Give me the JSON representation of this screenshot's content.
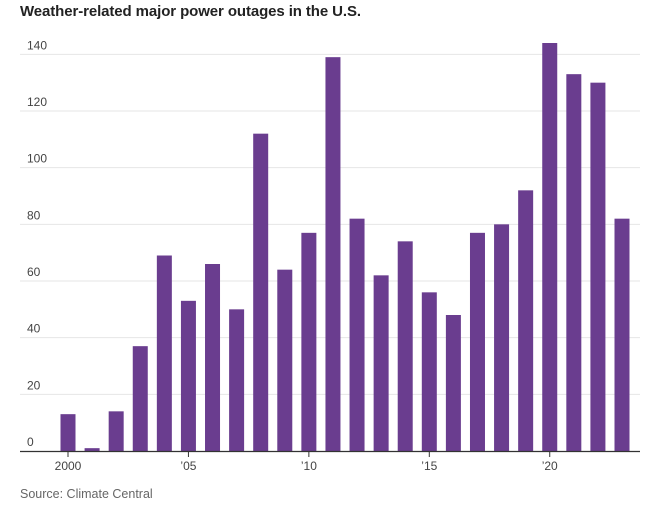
{
  "chart_data": {
    "type": "bar",
    "title": "Weather-related major power outages in the U.S.",
    "xlabel": "",
    "ylabel": "",
    "years": [
      2000,
      2001,
      2002,
      2003,
      2004,
      2005,
      2006,
      2007,
      2008,
      2009,
      2010,
      2011,
      2012,
      2013,
      2014,
      2015,
      2016,
      2017,
      2018,
      2019,
      2020,
      2021,
      2022,
      2023
    ],
    "values": [
      13,
      1,
      14,
      37,
      69,
      53,
      66,
      50,
      112,
      64,
      77,
      139,
      82,
      62,
      74,
      56,
      48,
      77,
      80,
      92,
      144,
      133,
      130,
      82
    ],
    "ylim": [
      0,
      150
    ],
    "y_ticks": [
      0,
      20,
      40,
      60,
      80,
      100,
      120,
      140
    ],
    "x_ticks": [
      {
        "year": 2000,
        "label": "2000"
      },
      {
        "year": 2005,
        "label": "’05"
      },
      {
        "year": 2010,
        "label": "’10"
      },
      {
        "year": 2015,
        "label": "’15"
      },
      {
        "year": 2020,
        "label": "’20"
      }
    ],
    "grid": true,
    "bar_color": "#6a3d8f",
    "grid_color": "#e6e6e6",
    "axis_color": "#333333"
  },
  "source": "Source: Climate Central"
}
